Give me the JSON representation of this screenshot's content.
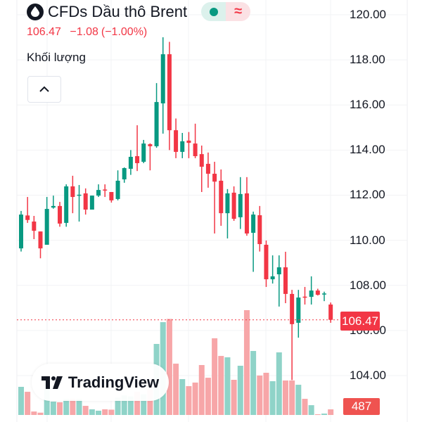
{
  "header": {
    "symbol_icon": "oil-drop-icon",
    "title": "CFDs Dầu thô Brent",
    "market_status_icon": "green-dot-icon",
    "delayed_icon_glyph": "≈",
    "last_price": "106.47",
    "change": "−1.08",
    "change_pct": "(−1.00%)"
  },
  "indicator": {
    "label": "Khối lượng",
    "collapse_icon": "chevron-up-icon"
  },
  "price_axis": {
    "labels": [
      "120.00",
      "118.00",
      "116.00",
      "114.00",
      "112.00",
      "110.00",
      "108.00",
      "106.00",
      "104.00"
    ]
  },
  "last_price_tag": "106.47",
  "last_volume_tag": "487",
  "brand": {
    "name": "TradingView"
  },
  "colors": {
    "up": "#089981",
    "down": "#F23645",
    "up_volume": "#8fd3c8",
    "down_volume": "#f7a6a8"
  },
  "chart_data": {
    "type": "candlestick",
    "title": "CFDs Dầu thô Brent",
    "ylim": [
      103.5,
      120.5
    ],
    "grid": true,
    "last_price": 106.47,
    "ohlc": [
      [
        109.64,
        111.3,
        109.5,
        111.14
      ],
      [
        111.1,
        111.92,
        110.77,
        110.9
      ],
      [
        110.83,
        111.08,
        110.05,
        110.42
      ],
      [
        110.39,
        110.39,
        109.2,
        109.64
      ],
      [
        109.8,
        111.92,
        109.8,
        111.39
      ],
      [
        111.45,
        111.98,
        111.4,
        111.52
      ],
      [
        111.52,
        111.7,
        110.6,
        110.74
      ],
      [
        110.77,
        112.48,
        110.6,
        112.39
      ],
      [
        112.39,
        112.86,
        111.2,
        111.92
      ],
      [
        111.98,
        112.45,
        110.83,
        112.02
      ],
      [
        112.08,
        112.3,
        111.14,
        111.36
      ],
      [
        111.36,
        111.98,
        111.36,
        111.98
      ],
      [
        111.98,
        112.48,
        111.92,
        112.23
      ],
      [
        112.25,
        112.48,
        111.92,
        112.21
      ],
      [
        112.14,
        112.14,
        111.67,
        111.77
      ],
      [
        111.83,
        113.1,
        111.77,
        112.64
      ],
      [
        112.7,
        113.23,
        112.55,
        113.2
      ],
      [
        113.17,
        114.0,
        112.9,
        113.7
      ],
      [
        113.73,
        115.1,
        113.07,
        113.42
      ],
      [
        113.48,
        114.45,
        113.42,
        114.29
      ],
      [
        114.26,
        114.3,
        113.1,
        114.17
      ],
      [
        114.17,
        116.97,
        114.1,
        116.13
      ],
      [
        116.07,
        119.0,
        114.73,
        118.25
      ],
      [
        118.25,
        118.8,
        114.0,
        114.88
      ],
      [
        114.88,
        115.4,
        113.64,
        113.92
      ],
      [
        113.92,
        114.76,
        113.64,
        114.39
      ],
      [
        114.42,
        114.8,
        113.64,
        114.32
      ],
      [
        114.29,
        115.17,
        113.64,
        113.73
      ],
      [
        113.82,
        114.2,
        112.14,
        113.26
      ],
      [
        113.39,
        113.89,
        112.33,
        112.95
      ],
      [
        112.95,
        113.48,
        110.3,
        112.6
      ],
      [
        112.64,
        113.14,
        110.64,
        111.2
      ],
      [
        111.2,
        112.27,
        110.08,
        112.08
      ],
      [
        112.11,
        112.39,
        110.86,
        110.95
      ],
      [
        111.02,
        112.8,
        110.5,
        112.05
      ],
      [
        112.08,
        112.8,
        110.2,
        110.3
      ],
      [
        110.33,
        111.27,
        108.6,
        111.14
      ],
      [
        111.11,
        111.52,
        109.5,
        109.83
      ],
      [
        109.8,
        109.99,
        107.93,
        108.27
      ],
      [
        108.27,
        109.33,
        108.08,
        108.4
      ],
      [
        108.49,
        109.33,
        107.06,
        108.8
      ],
      [
        108.8,
        109.49,
        107.21,
        107.62
      ],
      [
        107.62,
        107.8,
        103.8,
        106.28
      ],
      [
        106.34,
        107.8,
        105.68,
        107.46
      ],
      [
        107.5,
        107.93,
        107.15,
        107.48
      ],
      [
        107.49,
        108.4,
        107.15,
        107.77
      ],
      [
        107.77,
        107.85,
        107.55,
        107.58
      ],
      [
        107.6,
        107.72,
        107.3,
        107.64
      ],
      [
        107.15,
        107.24,
        106.34,
        106.47
      ]
    ],
    "volume": [
      2440,
      2010,
      300,
      200,
      3050,
      1160,
      1100,
      1400,
      1400,
      1400,
      790,
      490,
      370,
      490,
      460,
      1500,
      1700,
      1600,
      2000,
      1800,
      2200,
      6160,
      8050,
      8330,
      4450,
      3110,
      2500,
      2810,
      4330,
      3230,
      6650,
      5120,
      5000,
      3050,
      4270,
      9090,
      5550,
      3420,
      3660,
      2930,
      5430,
      2990,
      2990,
      2620,
      1400,
      850,
      60,
      120,
      487
    ]
  }
}
